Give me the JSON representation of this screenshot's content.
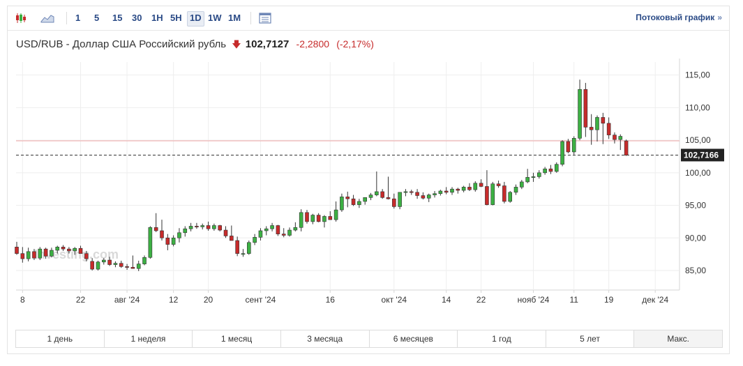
{
  "toolbar": {
    "intervals": [
      "1",
      "5",
      "15",
      "30",
      "1H",
      "5H",
      "1D",
      "1W",
      "1M"
    ],
    "active_interval": "1D",
    "stream_link": "Потоковый график",
    "stream_chevron": "»",
    "icons": [
      "candlestick-chart-icon",
      "area-chart-icon",
      "table-view-icon"
    ]
  },
  "header": {
    "pair": "USD/RUB - Доллар США Российский рубль",
    "direction_icon": "down-arrow-icon",
    "price": "102,7127",
    "change": "-2,2800",
    "change_pct": "(-2,17%)"
  },
  "colors": {
    "up": "#3cb043",
    "down": "#c62b2b",
    "grid": "#eeeeee",
    "accent": "#2a4a86",
    "price_tag": "#222222",
    "ref_line": "#f0a5a5"
  },
  "watermark": "Investing.com",
  "ranges": [
    "1 день",
    "1 неделя",
    "1 месяц",
    "3 месяца",
    "6 месяцев",
    "1 год",
    "5 лет",
    "Макс."
  ],
  "chart_data": {
    "type": "candlestick",
    "title": "USD/RUB - Доллар США Российский рубль",
    "ylim": [
      82,
      117
    ],
    "y_ticks": [
      85,
      90,
      95,
      100,
      105,
      110,
      115
    ],
    "y_tick_labels": [
      "85,00",
      "90,00",
      "95,00",
      "100,00",
      "105,00",
      "110,00",
      "115,00"
    ],
    "x_tick_labels": [
      {
        "label": "8",
        "index": 1
      },
      {
        "label": "22",
        "index": 11
      },
      {
        "label": "авг '24",
        "index": 19
      },
      {
        "label": "12",
        "index": 27
      },
      {
        "label": "20",
        "index": 33
      },
      {
        "label": "сент '24",
        "index": 42
      },
      {
        "label": "16",
        "index": 54
      },
      {
        "label": "окт '24",
        "index": 65
      },
      {
        "label": "14",
        "index": 74
      },
      {
        "label": "22",
        "index": 80
      },
      {
        "label": "нояб '24",
        "index": 89
      },
      {
        "label": "11",
        "index": 96
      },
      {
        "label": "19",
        "index": 102
      },
      {
        "label": "дек '24",
        "index": 110
      }
    ],
    "last_price_label": "102,7166",
    "last_price": 102.7166,
    "ref_line_value": 104.9,
    "candles": [
      [
        88.6,
        89.4,
        87.4,
        87.6
      ],
      [
        87.6,
        88.6,
        86.2,
        86.8
      ],
      [
        86.8,
        88.5,
        86.4,
        87.9
      ],
      [
        87.9,
        88.3,
        86.6,
        86.9
      ],
      [
        86.9,
        88.6,
        86.6,
        88.3
      ],
      [
        88.3,
        88.5,
        86.8,
        87.2
      ],
      [
        87.2,
        88.5,
        87.0,
        88.1
      ],
      [
        88.1,
        88.8,
        87.6,
        88.6
      ],
      [
        88.6,
        88.9,
        88.0,
        88.3
      ],
      [
        88.3,
        88.6,
        87.6,
        88.0
      ],
      [
        88.0,
        88.6,
        87.4,
        88.4
      ],
      [
        88.4,
        88.8,
        87.8,
        87.6
      ],
      [
        87.6,
        88.0,
        86.4,
        86.8
      ],
      [
        86.4,
        86.9,
        85.0,
        85.2
      ],
      [
        85.2,
        86.5,
        85.0,
        86.3
      ],
      [
        86.3,
        86.9,
        85.9,
        86.6
      ],
      [
        86.6,
        87.1,
        85.7,
        85.9
      ],
      [
        85.9,
        86.4,
        85.5,
        86.1
      ],
      [
        86.1,
        86.5,
        85.4,
        85.6
      ],
      [
        85.6,
        86.0,
        85.1,
        85.5
      ],
      [
        85.5,
        87.3,
        85.3,
        85.3
      ],
      [
        85.3,
        86.5,
        84.9,
        86.0
      ],
      [
        86.0,
        87.3,
        85.8,
        87.0
      ],
      [
        87.0,
        91.8,
        86.8,
        91.6
      ],
      [
        91.6,
        93.8,
        90.9,
        91.1
      ],
      [
        91.1,
        92.8,
        89.6,
        90.0
      ],
      [
        90.0,
        90.6,
        88.1,
        89.0
      ],
      [
        89.0,
        90.4,
        88.7,
        90.0
      ],
      [
        90.0,
        91.5,
        89.3,
        90.8
      ],
      [
        90.8,
        91.8,
        90.2,
        91.4
      ],
      [
        91.4,
        92.3,
        91.0,
        91.8
      ],
      [
        91.8,
        92.3,
        91.4,
        91.7
      ],
      [
        91.7,
        92.2,
        91.3,
        91.9
      ],
      [
        91.9,
        92.5,
        91.1,
        91.4
      ],
      [
        91.4,
        92.2,
        91.1,
        91.9
      ],
      [
        91.9,
        92.0,
        91.0,
        91.2
      ],
      [
        91.2,
        91.8,
        90.0,
        90.3
      ],
      [
        90.3,
        91.9,
        89.6,
        89.6
      ],
      [
        89.6,
        90.2,
        87.2,
        87.6
      ],
      [
        87.6,
        88.3,
        87.1,
        87.6
      ],
      [
        87.6,
        89.6,
        87.4,
        89.3
      ],
      [
        89.3,
        90.6,
        88.9,
        90.1
      ],
      [
        90.1,
        91.5,
        89.6,
        91.1
      ],
      [
        91.1,
        91.8,
        90.4,
        91.4
      ],
      [
        91.4,
        92.3,
        91.0,
        91.9
      ],
      [
        91.9,
        92.0,
        90.3,
        90.6
      ],
      [
        90.6,
        91.5,
        90.1,
        90.4
      ],
      [
        90.4,
        91.6,
        90.2,
        91.2
      ],
      [
        91.2,
        92.4,
        91.0,
        91.6
      ],
      [
        91.6,
        94.4,
        91.0,
        93.9
      ],
      [
        93.9,
        94.3,
        92.2,
        92.5
      ],
      [
        92.5,
        93.7,
        92.1,
        93.5
      ],
      [
        93.5,
        93.8,
        92.4,
        92.5
      ],
      [
        92.5,
        93.5,
        91.6,
        93.3
      ],
      [
        93.3,
        94.1,
        92.8,
        92.8
      ],
      [
        92.8,
        95.6,
        92.5,
        94.3
      ],
      [
        94.3,
        96.8,
        94.0,
        96.3
      ],
      [
        96.3,
        97.1,
        94.7,
        96.0
      ],
      [
        96.0,
        96.6,
        94.9,
        95.1
      ],
      [
        95.1,
        96.0,
        94.6,
        95.6
      ],
      [
        95.6,
        96.2,
        95.1,
        96.2
      ],
      [
        96.2,
        96.9,
        95.8,
        96.6
      ],
      [
        96.6,
        100.2,
        96.4,
        97.1
      ],
      [
        97.1,
        97.5,
        96.0,
        96.2
      ],
      [
        96.2,
        99.4,
        95.9,
        96.0
      ],
      [
        96.0,
        96.8,
        94.5,
        94.8
      ],
      [
        94.8,
        96.9,
        94.4,
        97.0
      ],
      [
        97.0,
        97.5,
        96.4,
        97.1
      ],
      [
        97.1,
        97.4,
        96.6,
        97.0
      ],
      [
        97.0,
        97.5,
        96.0,
        96.5
      ],
      [
        96.5,
        97.0,
        95.9,
        96.1
      ],
      [
        96.1,
        96.8,
        95.5,
        96.6
      ],
      [
        96.6,
        97.2,
        96.2,
        96.8
      ],
      [
        96.8,
        97.4,
        96.5,
        97.2
      ],
      [
        97.2,
        97.8,
        96.7,
        97.0
      ],
      [
        97.0,
        97.8,
        96.6,
        97.5
      ],
      [
        97.5,
        97.7,
        96.8,
        97.3
      ],
      [
        97.3,
        98.0,
        97.0,
        97.8
      ],
      [
        97.8,
        98.4,
        97.2,
        97.4
      ],
      [
        97.4,
        98.7,
        97.1,
        98.4
      ],
      [
        98.4,
        99.0,
        97.8,
        97.9
      ],
      [
        97.9,
        100.4,
        95.0,
        95.1
      ],
      [
        95.1,
        98.6,
        95.0,
        98.3
      ],
      [
        98.3,
        98.8,
        97.7,
        98.0
      ],
      [
        98.0,
        98.6,
        95.3,
        95.6
      ],
      [
        95.6,
        97.2,
        95.4,
        97.0
      ],
      [
        97.0,
        98.2,
        96.6,
        97.8
      ],
      [
        97.8,
        98.9,
        97.5,
        98.6
      ],
      [
        98.6,
        100.6,
        98.4,
        99.3
      ],
      [
        99.3,
        100.0,
        98.6,
        99.4
      ],
      [
        99.4,
        100.4,
        99.1,
        100.0
      ],
      [
        100.0,
        100.9,
        99.7,
        100.6
      ],
      [
        100.6,
        101.2,
        99.8,
        100.2
      ],
      [
        100.2,
        101.6,
        100.0,
        101.3
      ],
      [
        101.3,
        105.0,
        101.0,
        104.8
      ],
      [
        104.8,
        105.2,
        103.0,
        103.2
      ],
      [
        103.2,
        105.6,
        102.8,
        105.3
      ],
      [
        105.3,
        114.3,
        105.0,
        112.8
      ],
      [
        112.8,
        113.8,
        105.5,
        107.0
      ],
      [
        107.0,
        109.0,
        104.3,
        106.6
      ],
      [
        106.6,
        108.8,
        104.8,
        108.5
      ],
      [
        108.5,
        109.2,
        104.4,
        107.6
      ],
      [
        107.6,
        108.5,
        105.2,
        105.8
      ],
      [
        105.8,
        106.2,
        104.5,
        105.1
      ],
      [
        105.1,
        105.9,
        103.5,
        105.6
      ],
      [
        104.9,
        105.1,
        102.6,
        102.7
      ]
    ]
  }
}
